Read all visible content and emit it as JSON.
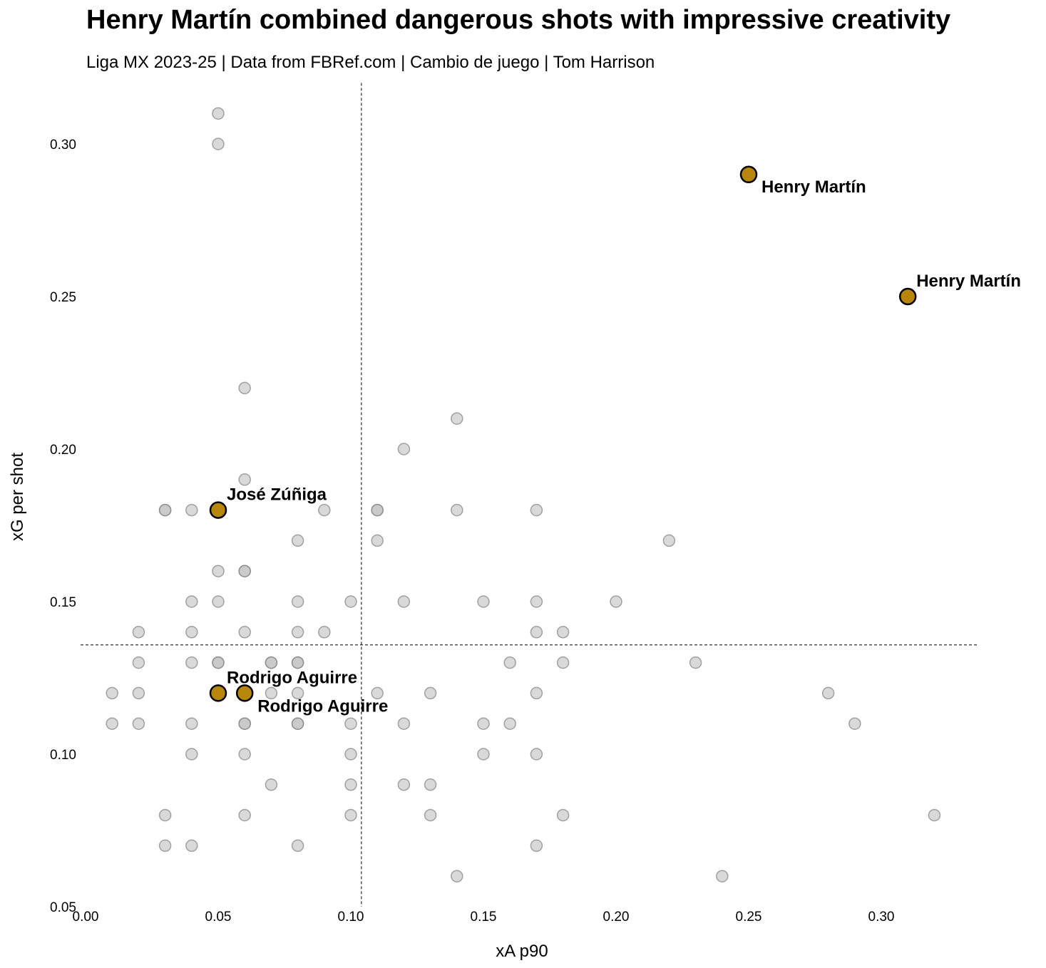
{
  "chart_data": {
    "type": "scatter",
    "title": "Henry Martín combined dangerous shots with impressive creativity",
    "subtitle": "Liga MX 2023-25 | Data from FBRef.com | Cambio de juego | Tom Harrison",
    "xlabel": "xA p90",
    "ylabel": "xG per shot",
    "xlim": [
      0.0,
      0.331
    ],
    "ylim": [
      0.05,
      0.32
    ],
    "xticks": [
      "0.00",
      "0.05",
      "0.10",
      "0.15",
      "0.20",
      "0.25",
      "0.30"
    ],
    "yticks": [
      "0.05",
      "0.10",
      "0.15",
      "0.20",
      "0.25",
      "0.30"
    ],
    "grid": false,
    "reference_lines": {
      "x_mean": 0.104,
      "y_mean": 0.1358
    },
    "colors": {
      "highlight": "#B8860B",
      "other": "#bfbfbf",
      "edge": "#808080"
    },
    "points": [
      [
        0.05,
        0.31
      ],
      [
        0.05,
        0.3
      ],
      [
        0.06,
        0.22
      ],
      [
        0.14,
        0.21
      ],
      [
        0.12,
        0.2
      ],
      [
        0.06,
        0.19
      ],
      [
        0.03,
        0.18
      ],
      [
        0.03,
        0.18
      ],
      [
        0.04,
        0.18
      ],
      [
        0.09,
        0.18
      ],
      [
        0.11,
        0.18
      ],
      [
        0.11,
        0.18
      ],
      [
        0.14,
        0.18
      ],
      [
        0.17,
        0.18
      ],
      [
        0.08,
        0.17
      ],
      [
        0.11,
        0.17
      ],
      [
        0.22,
        0.17
      ],
      [
        0.05,
        0.16
      ],
      [
        0.06,
        0.16
      ],
      [
        0.06,
        0.16
      ],
      [
        0.04,
        0.15
      ],
      [
        0.05,
        0.15
      ],
      [
        0.08,
        0.15
      ],
      [
        0.1,
        0.15
      ],
      [
        0.12,
        0.15
      ],
      [
        0.15,
        0.15
      ],
      [
        0.17,
        0.15
      ],
      [
        0.2,
        0.15
      ],
      [
        0.02,
        0.14
      ],
      [
        0.04,
        0.14
      ],
      [
        0.06,
        0.14
      ],
      [
        0.08,
        0.14
      ],
      [
        0.09,
        0.14
      ],
      [
        0.17,
        0.14
      ],
      [
        0.18,
        0.14
      ],
      [
        0.02,
        0.13
      ],
      [
        0.04,
        0.13
      ],
      [
        0.05,
        0.13
      ],
      [
        0.05,
        0.13
      ],
      [
        0.07,
        0.13
      ],
      [
        0.07,
        0.13
      ],
      [
        0.08,
        0.13
      ],
      [
        0.08,
        0.13
      ],
      [
        0.16,
        0.13
      ],
      [
        0.18,
        0.13
      ],
      [
        0.23,
        0.13
      ],
      [
        0.01,
        0.12
      ],
      [
        0.02,
        0.12
      ],
      [
        0.07,
        0.12
      ],
      [
        0.08,
        0.12
      ],
      [
        0.11,
        0.12
      ],
      [
        0.13,
        0.12
      ],
      [
        0.17,
        0.12
      ],
      [
        0.28,
        0.12
      ],
      [
        0.01,
        0.11
      ],
      [
        0.02,
        0.11
      ],
      [
        0.04,
        0.11
      ],
      [
        0.06,
        0.11
      ],
      [
        0.06,
        0.11
      ],
      [
        0.08,
        0.11
      ],
      [
        0.08,
        0.11
      ],
      [
        0.1,
        0.11
      ],
      [
        0.12,
        0.11
      ],
      [
        0.15,
        0.11
      ],
      [
        0.16,
        0.11
      ],
      [
        0.29,
        0.11
      ],
      [
        0.04,
        0.1
      ],
      [
        0.06,
        0.1
      ],
      [
        0.1,
        0.1
      ],
      [
        0.15,
        0.1
      ],
      [
        0.17,
        0.1
      ],
      [
        0.07,
        0.09
      ],
      [
        0.1,
        0.09
      ],
      [
        0.12,
        0.09
      ],
      [
        0.13,
        0.09
      ],
      [
        0.03,
        0.08
      ],
      [
        0.06,
        0.08
      ],
      [
        0.1,
        0.08
      ],
      [
        0.13,
        0.08
      ],
      [
        0.18,
        0.08
      ],
      [
        0.32,
        0.08
      ],
      [
        0.03,
        0.07
      ],
      [
        0.04,
        0.07
      ],
      [
        0.08,
        0.07
      ],
      [
        0.17,
        0.07
      ],
      [
        0.14,
        0.06
      ],
      [
        0.24,
        0.06
      ]
    ],
    "highlighted": [
      {
        "name": "Henry Martín",
        "x": 0.25,
        "y": 0.29
      },
      {
        "name": "Henry Martín",
        "x": 0.31,
        "y": 0.25
      },
      {
        "name": "José Zúñiga",
        "x": 0.05,
        "y": 0.18
      },
      {
        "name": "Rodrigo Aguirre",
        "x": 0.05,
        "y": 0.12
      },
      {
        "name": "Rodrigo Aguirre",
        "x": 0.06,
        "y": 0.12
      }
    ]
  }
}
